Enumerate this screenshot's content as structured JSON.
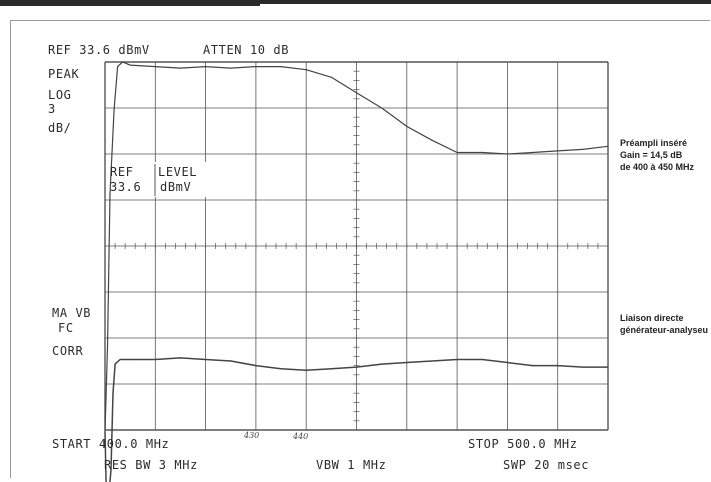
{
  "header": {
    "ref": "REF 33.6 dBmV",
    "atten": "ATTEN 10 dB"
  },
  "left_labels": {
    "peak": "PEAK",
    "log": "LOG",
    "scale_value": "3",
    "scale_unit": "dB/",
    "ma_vb": "MA VB",
    "fc": "FC",
    "corr": "CORR"
  },
  "ref_level_box": {
    "line1_left": "REF",
    "line1_right": "LEVEL",
    "line2_left": "33.6",
    "line2_right": "dBmV"
  },
  "footer": {
    "start": "START 400.0 MHz",
    "stop": "STOP 500.0 MHz",
    "res_bw": "RES BW 3 MHz",
    "vbw": "VBW 1 MHz",
    "swp": "SWP 20 msec"
  },
  "handwritten": {
    "mark_430": "430",
    "mark_440": "440"
  },
  "annotations": {
    "preamp_line1": "Préampli inséré",
    "preamp_line2": "Gain = 14,5 dB",
    "preamp_line3": "de 400 à 450 MHz",
    "direct_line1": "Liaison directe",
    "direct_line2": "générateur-analyseur"
  },
  "colors": {
    "grid": "#555555",
    "trace": "#444444",
    "text": "#2b2b2b"
  },
  "chart_data": {
    "type": "line",
    "x_unit": "MHz",
    "xlim": [
      400,
      500
    ],
    "x_divisions": 10,
    "y_unit": "dBmV",
    "y_scale": "log, 3 dB/div",
    "y_ref_top": 33.6,
    "y_divisions": 8,
    "grid": true,
    "series": [
      {
        "name": "Préampli inséré",
        "x": [
          400,
          400.5,
          401,
          401.8,
          402.5,
          403.5,
          405,
          410,
          415,
          420,
          425,
          430,
          435,
          440,
          445,
          450,
          455,
          460,
          465,
          470,
          475,
          480,
          485,
          490,
          495,
          500
        ],
        "y": [
          9.5,
          15,
          25,
          30.5,
          33.3,
          33.6,
          33.4,
          33.3,
          33.2,
          33.3,
          33.2,
          33.3,
          33.3,
          33.1,
          32.6,
          31.6,
          30.6,
          29.4,
          28.5,
          27.7,
          27.7,
          27.6,
          27.7,
          27.8,
          27.9,
          28.1
        ]
      },
      {
        "name": "Liaison directe générateur-analyseur",
        "x": [
          400,
          400.3,
          400.8,
          401.2,
          401.6,
          402,
          403,
          405,
          410,
          415,
          420,
          425,
          430,
          435,
          440,
          445,
          450,
          455,
          460,
          465,
          470,
          475,
          480,
          485,
          490,
          495,
          500
        ],
        "y": [
          9.5,
          5,
          5.5,
          7,
          12,
          13.9,
          14.2,
          14.2,
          14.2,
          14.3,
          14.2,
          14.1,
          13.8,
          13.6,
          13.5,
          13.6,
          13.7,
          13.9,
          14.0,
          14.1,
          14.2,
          14.2,
          14.0,
          13.8,
          13.8,
          13.7,
          13.7
        ]
      }
    ]
  }
}
